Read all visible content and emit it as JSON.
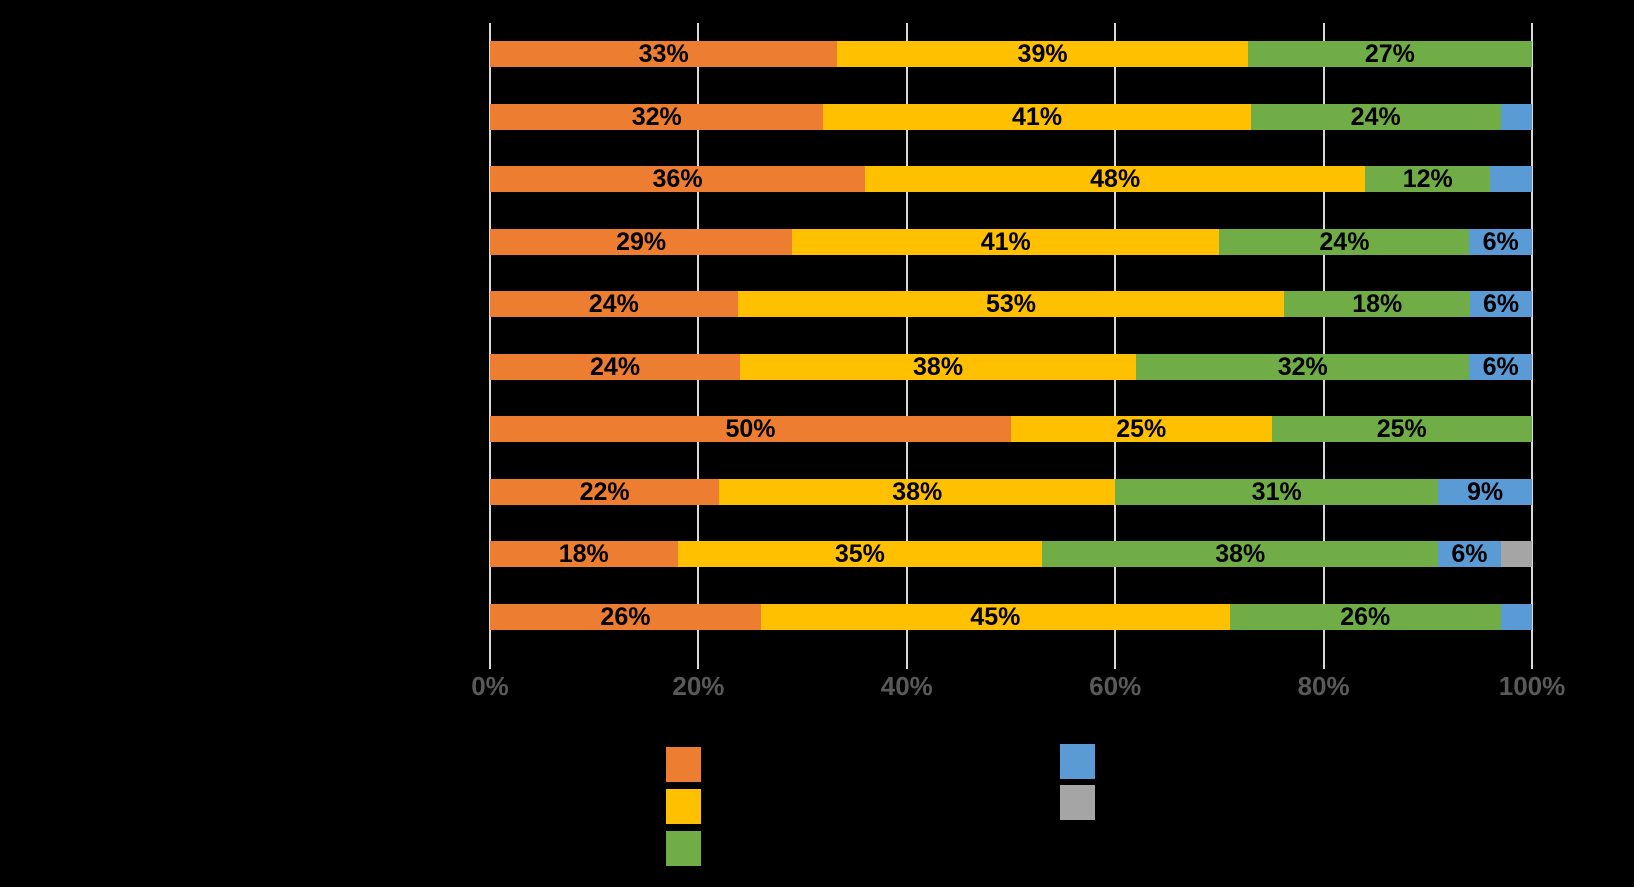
{
  "chart_data": {
    "type": "bar",
    "variant": "stacked-100-horizontal",
    "title": "",
    "xlabel": "",
    "ylabel": "",
    "x_axis": {
      "range": [
        0,
        100
      ],
      "tick_labels": [
        "0%",
        "20%",
        "40%",
        "60%",
        "80%",
        "100%"
      ],
      "grid": true
    },
    "categories": [
      "",
      "",
      "",
      "",
      "",
      "",
      "",
      "",
      "",
      ""
    ],
    "colors": {
      "orange": "#ED7D31",
      "yellow": "#FFC000",
      "green": "#70AD47",
      "blue": "#5B9BD5",
      "gray": "#A5A5A5"
    },
    "series": [
      {
        "name": "series-orange",
        "color_key": "orange",
        "values": [
          33,
          32,
          36,
          29,
          24,
          24,
          50,
          22,
          18,
          26
        ]
      },
      {
        "name": "series-yellow",
        "color_key": "yellow",
        "values": [
          39,
          41,
          48,
          41,
          53,
          38,
          25,
          38,
          35,
          45
        ]
      },
      {
        "name": "series-green",
        "color_key": "green",
        "values": [
          27,
          24,
          12,
          24,
          18,
          32,
          25,
          31,
          38,
          26
        ]
      },
      {
        "name": "series-blue",
        "color_key": "blue",
        "values": [
          0,
          3,
          4,
          6,
          6,
          6,
          0,
          9,
          6,
          3
        ]
      },
      {
        "name": "series-gray",
        "color_key": "gray",
        "values": [
          0,
          0,
          0,
          0,
          0,
          0,
          0,
          0,
          3,
          0
        ]
      }
    ],
    "rows": [
      {
        "segments": [
          {
            "color": "orange",
            "value": 33,
            "label": "33%"
          },
          {
            "color": "yellow",
            "value": 39,
            "label": "39%"
          },
          {
            "color": "green",
            "value": 27,
            "label": "27%"
          }
        ]
      },
      {
        "segments": [
          {
            "color": "orange",
            "value": 32,
            "label": "32%"
          },
          {
            "color": "yellow",
            "value": 41,
            "label": "41%"
          },
          {
            "color": "green",
            "value": 24,
            "label": "24%"
          },
          {
            "color": "blue",
            "value": 3,
            "label": ""
          }
        ]
      },
      {
        "segments": [
          {
            "color": "orange",
            "value": 36,
            "label": "36%"
          },
          {
            "color": "yellow",
            "value": 48,
            "label": "48%"
          },
          {
            "color": "green",
            "value": 12,
            "label": "12%"
          },
          {
            "color": "blue",
            "value": 4,
            "label": ""
          }
        ]
      },
      {
        "segments": [
          {
            "color": "orange",
            "value": 29,
            "label": "29%"
          },
          {
            "color": "yellow",
            "value": 41,
            "label": "41%"
          },
          {
            "color": "green",
            "value": 24,
            "label": "24%"
          },
          {
            "color": "blue",
            "value": 6,
            "label": "6%"
          }
        ]
      },
      {
        "segments": [
          {
            "color": "orange",
            "value": 24,
            "label": "24%"
          },
          {
            "color": "yellow",
            "value": 53,
            "label": "53%"
          },
          {
            "color": "green",
            "value": 18,
            "label": "18%"
          },
          {
            "color": "blue",
            "value": 6,
            "label": "6%"
          }
        ]
      },
      {
        "segments": [
          {
            "color": "orange",
            "value": 24,
            "label": "24%"
          },
          {
            "color": "yellow",
            "value": 38,
            "label": "38%"
          },
          {
            "color": "green",
            "value": 32,
            "label": "32%"
          },
          {
            "color": "blue",
            "value": 6,
            "label": "6%"
          }
        ]
      },
      {
        "segments": [
          {
            "color": "orange",
            "value": 50,
            "label": "50%"
          },
          {
            "color": "yellow",
            "value": 25,
            "label": "25%"
          },
          {
            "color": "green",
            "value": 25,
            "label": "25%"
          }
        ]
      },
      {
        "segments": [
          {
            "color": "orange",
            "value": 22,
            "label": "22%"
          },
          {
            "color": "yellow",
            "value": 38,
            "label": "38%"
          },
          {
            "color": "green",
            "value": 31,
            "label": "31%"
          },
          {
            "color": "blue",
            "value": 9,
            "label": "9%"
          }
        ]
      },
      {
        "segments": [
          {
            "color": "orange",
            "value": 18,
            "label": "18%"
          },
          {
            "color": "yellow",
            "value": 35,
            "label": "35%"
          },
          {
            "color": "green",
            "value": 38,
            "label": "38%"
          },
          {
            "color": "blue",
            "value": 6,
            "label": "6%"
          },
          {
            "color": "gray",
            "value": 3,
            "label": ""
          }
        ]
      },
      {
        "segments": [
          {
            "color": "orange",
            "value": 26,
            "label": "26%"
          },
          {
            "color": "yellow",
            "value": 45,
            "label": "45%"
          },
          {
            "color": "green",
            "value": 26,
            "label": "26%"
          },
          {
            "color": "blue",
            "value": 3,
            "label": ""
          }
        ]
      }
    ],
    "legend": {
      "position": "bottom",
      "left_column_swatches": [
        "orange",
        "yellow",
        "green"
      ],
      "right_column_swatches": [
        "blue",
        "gray"
      ],
      "labels_visible": false
    },
    "style": {
      "background_color": "#000000",
      "gridline_color": "#D9D9D9",
      "axis_label_color": "#595959",
      "data_label_color": "#000000"
    }
  }
}
